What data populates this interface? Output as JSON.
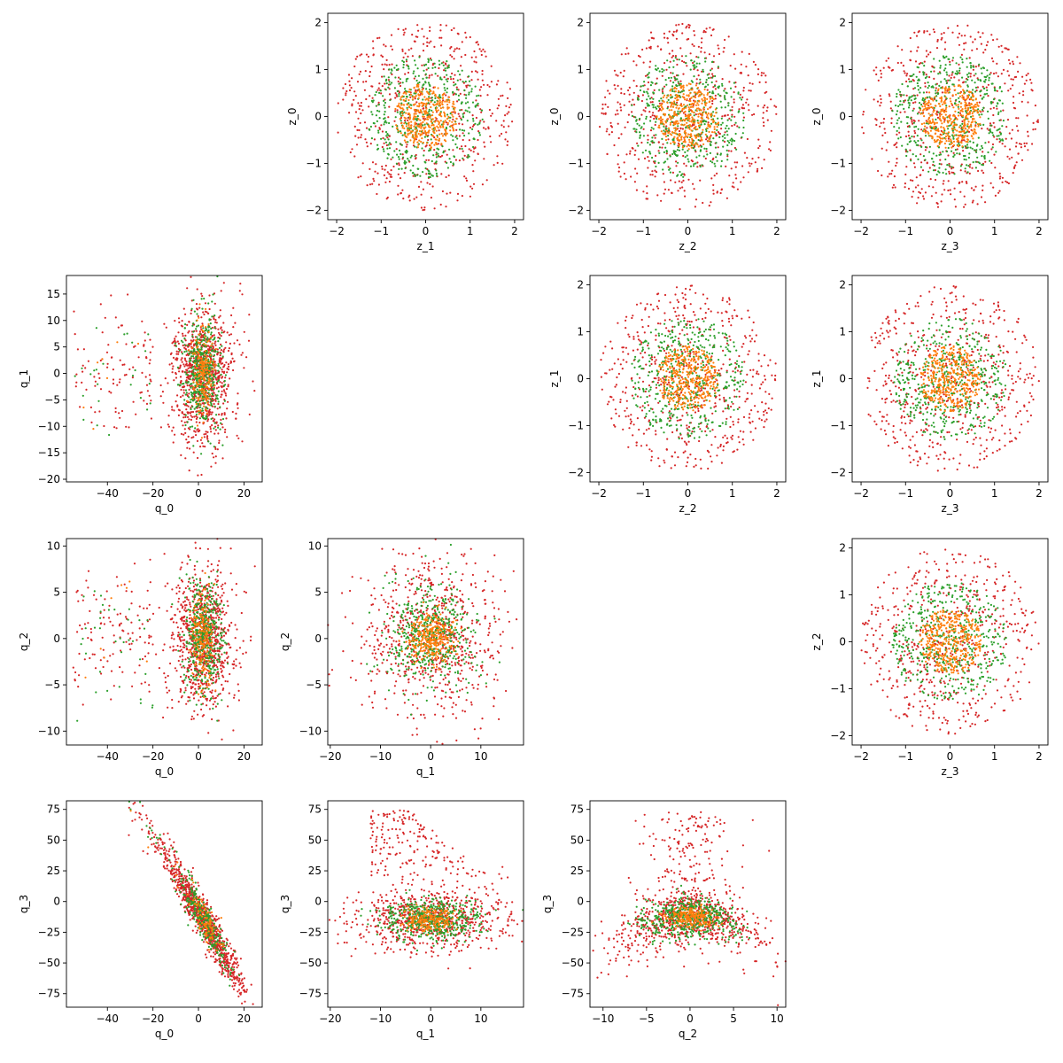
{
  "colors": {
    "outer_shell": "#d62728",
    "middle_shell": "#2ca02c",
    "inner_core": "#ff7f0e",
    "frame": "#000000"
  },
  "chart_data": [
    {
      "type": "scatter",
      "id": "z1-z0",
      "row": 0,
      "col": 1,
      "xlabel": "z_1",
      "ylabel": "z_0",
      "xlim": [
        -2.2,
        2.2
      ],
      "ylim": [
        -2.2,
        2.2
      ],
      "xticks": [
        -2,
        -1,
        0,
        1,
        2
      ],
      "yticks": [
        -2,
        -1,
        0,
        1,
        2
      ],
      "distribution": "concentric-shells",
      "shell_radii": [
        0.7,
        1.3,
        2.0
      ],
      "series": [
        {
          "color": "#d62728",
          "n_points": 560
        },
        {
          "color": "#2ca02c",
          "n_points": 460
        },
        {
          "color": "#ff7f0e",
          "n_points": 380
        }
      ]
    },
    {
      "type": "scatter",
      "id": "z2-z0",
      "row": 0,
      "col": 2,
      "xlabel": "z_2",
      "ylabel": "z_0",
      "xlim": [
        -2.2,
        2.2
      ],
      "ylim": [
        -2.2,
        2.2
      ],
      "xticks": [
        -2,
        -1,
        0,
        1,
        2
      ],
      "yticks": [
        -2,
        -1,
        0,
        1,
        2
      ],
      "distribution": "concentric-shells",
      "shell_radii": [
        0.7,
        1.3,
        2.0
      ],
      "series": [
        {
          "color": "#d62728",
          "n_points": 560
        },
        {
          "color": "#2ca02c",
          "n_points": 460
        },
        {
          "color": "#ff7f0e",
          "n_points": 380
        }
      ]
    },
    {
      "type": "scatter",
      "id": "z3-z0",
      "row": 0,
      "col": 3,
      "xlabel": "z_3",
      "ylabel": "z_0",
      "xlim": [
        -2.2,
        2.2
      ],
      "ylim": [
        -2.2,
        2.2
      ],
      "xticks": [
        -2,
        -1,
        0,
        1,
        2
      ],
      "yticks": [
        -2,
        -1,
        0,
        1,
        2
      ],
      "distribution": "concentric-shells",
      "shell_radii": [
        0.7,
        1.3,
        2.0
      ],
      "series": [
        {
          "color": "#d62728",
          "n_points": 560
        },
        {
          "color": "#2ca02c",
          "n_points": 460
        },
        {
          "color": "#ff7f0e",
          "n_points": 380
        }
      ]
    },
    {
      "type": "scatter",
      "id": "z2-z1",
      "row": 1,
      "col": 2,
      "xlabel": "z_2",
      "ylabel": "z_1",
      "xlim": [
        -2.2,
        2.2
      ],
      "ylim": [
        -2.2,
        2.2
      ],
      "xticks": [
        -2,
        -1,
        0,
        1,
        2
      ],
      "yticks": [
        -2,
        -1,
        0,
        1,
        2
      ],
      "distribution": "concentric-shells",
      "shell_radii": [
        0.7,
        1.3,
        2.0
      ],
      "series": [
        {
          "color": "#d62728",
          "n_points": 560
        },
        {
          "color": "#2ca02c",
          "n_points": 460
        },
        {
          "color": "#ff7f0e",
          "n_points": 380
        }
      ]
    },
    {
      "type": "scatter",
      "id": "z3-z1",
      "row": 1,
      "col": 3,
      "xlabel": "z_3",
      "ylabel": "z_1",
      "xlim": [
        -2.2,
        2.2
      ],
      "ylim": [
        -2.2,
        2.2
      ],
      "xticks": [
        -2,
        -1,
        0,
        1,
        2
      ],
      "yticks": [
        -2,
        -1,
        0,
        1,
        2
      ],
      "distribution": "concentric-shells",
      "shell_radii": [
        0.7,
        1.3,
        2.0
      ],
      "series": [
        {
          "color": "#d62728",
          "n_points": 560
        },
        {
          "color": "#2ca02c",
          "n_points": 460
        },
        {
          "color": "#ff7f0e",
          "n_points": 380
        }
      ]
    },
    {
      "type": "scatter",
      "id": "z3-z2",
      "row": 2,
      "col": 3,
      "xlabel": "z_3",
      "ylabel": "z_2",
      "xlim": [
        -2.2,
        2.2
      ],
      "ylim": [
        -2.2,
        2.2
      ],
      "xticks": [
        -2,
        -1,
        0,
        1,
        2
      ],
      "yticks": [
        -2,
        -1,
        0,
        1,
        2
      ],
      "distribution": "concentric-shells",
      "shell_radii": [
        0.7,
        1.3,
        2.0
      ],
      "series": [
        {
          "color": "#d62728",
          "n_points": 560
        },
        {
          "color": "#2ca02c",
          "n_points": 460
        },
        {
          "color": "#ff7f0e",
          "n_points": 380
        }
      ]
    },
    {
      "type": "scatter",
      "id": "q0-q1",
      "row": 1,
      "col": 0,
      "xlabel": "q_0",
      "ylabel": "q_1",
      "xlim": [
        -58,
        28
      ],
      "ylim": [
        -20.5,
        18.5
      ],
      "xticks": [
        -40,
        -20,
        0,
        20
      ],
      "yticks": [
        -20,
        -15,
        -10,
        -5,
        0,
        5,
        10,
        15
      ],
      "distribution": "skewed-cloud",
      "series": [
        {
          "color": "#d62728",
          "n_points": 1000
        },
        {
          "color": "#2ca02c",
          "n_points": 500
        },
        {
          "color": "#ff7f0e",
          "n_points": 200
        }
      ]
    },
    {
      "type": "scatter",
      "id": "q0-q2",
      "row": 2,
      "col": 0,
      "xlabel": "q_0",
      "ylabel": "q_2",
      "xlim": [
        -58,
        28
      ],
      "ylim": [
        -11.5,
        10.8
      ],
      "xticks": [
        -40,
        -20,
        0,
        20
      ],
      "yticks": [
        -10,
        -5,
        0,
        5,
        10
      ],
      "distribution": "skewed-cloud",
      "series": [
        {
          "color": "#d62728",
          "n_points": 1000
        },
        {
          "color": "#2ca02c",
          "n_points": 500
        },
        {
          "color": "#ff7f0e",
          "n_points": 200
        }
      ]
    },
    {
      "type": "scatter",
      "id": "q1-q2",
      "row": 2,
      "col": 1,
      "xlabel": "q_1",
      "ylabel": "q_2",
      "xlim": [
        -20.5,
        18.5
      ],
      "ylim": [
        -11.5,
        10.8
      ],
      "xticks": [
        -20,
        -10,
        0,
        10
      ],
      "yticks": [
        -10,
        -5,
        0,
        5,
        10
      ],
      "distribution": "elliptical-cloud",
      "series": [
        {
          "color": "#d62728",
          "n_points": 700
        },
        {
          "color": "#2ca02c",
          "n_points": 500
        },
        {
          "color": "#ff7f0e",
          "n_points": 300
        }
      ]
    },
    {
      "type": "scatter",
      "id": "q0-q3",
      "row": 3,
      "col": 0,
      "xlabel": "q_0",
      "ylabel": "q_3",
      "xlim": [
        -58,
        28
      ],
      "ylim": [
        -86,
        82
      ],
      "xticks": [
        -40,
        -20,
        0,
        20
      ],
      "yticks": [
        -75,
        -50,
        -25,
        0,
        25,
        50,
        75
      ],
      "distribution": "negative-diagonal-band",
      "series": [
        {
          "color": "#d62728",
          "n_points": 1000
        },
        {
          "color": "#2ca02c",
          "n_points": 300
        },
        {
          "color": "#ff7f0e",
          "n_points": 100
        }
      ]
    },
    {
      "type": "scatter",
      "id": "q1-q3",
      "row": 3,
      "col": 1,
      "xlabel": "q_1",
      "ylabel": "q_3",
      "xlim": [
        -20.5,
        18.5
      ],
      "ylim": [
        -86,
        82
      ],
      "xticks": [
        -20,
        -10,
        0,
        10
      ],
      "yticks": [
        -75,
        -50,
        -25,
        0,
        25,
        50,
        75
      ],
      "distribution": "lower-band-with-arms",
      "series": [
        {
          "color": "#d62728",
          "n_points": 900
        },
        {
          "color": "#2ca02c",
          "n_points": 500
        },
        {
          "color": "#ff7f0e",
          "n_points": 200
        }
      ]
    },
    {
      "type": "scatter",
      "id": "q2-q3",
      "row": 3,
      "col": 2,
      "xlabel": "q_2",
      "ylabel": "q_3",
      "xlim": [
        -11.5,
        11
      ],
      "ylim": [
        -86,
        82
      ],
      "xticks": [
        -10,
        -5,
        0,
        5,
        10
      ],
      "yticks": [
        -75,
        -50,
        -25,
        0,
        25,
        50,
        75
      ],
      "distribution": "arch",
      "series": [
        {
          "color": "#d62728",
          "n_points": 900
        },
        {
          "color": "#2ca02c",
          "n_points": 500
        },
        {
          "color": "#ff7f0e",
          "n_points": 200
        }
      ]
    }
  ]
}
